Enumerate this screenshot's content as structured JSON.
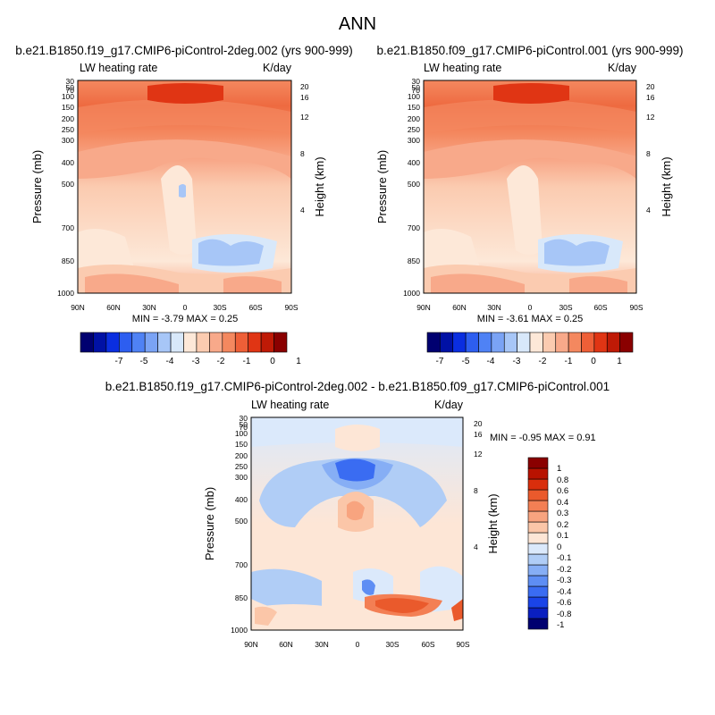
{
  "figure": {
    "title": "ANN"
  },
  "chart_data": [
    {
      "type": "heatmap",
      "title": "b.e21.B1850.f19_g17.CMIP6-piControl-2deg.002 (yrs 900-999)",
      "left_subtitle": "LW heating rate",
      "right_subtitle": "K/day",
      "ylabel": "Pressure (mb)",
      "ylabel_right": "Height (km)",
      "xlabel": "",
      "x_ticks": [
        "90N",
        "60N",
        "30N",
        "0",
        "30S",
        "60S",
        "90S"
      ],
      "y_ticks": [
        "30",
        "50",
        "70",
        "100",
        "150",
        "200",
        "250",
        "300",
        "400",
        "500",
        "700",
        "850",
        "1000"
      ],
      "y_ticks_right": [
        "20",
        "16",
        "12",
        "8",
        "4"
      ],
      "stats": "MIN = -3.79 MAX = 0.25"
    },
    {
      "type": "heatmap",
      "title": "b.e21.B1850.f09_g17.CMIP6-piControl.001 (yrs 900-999)",
      "left_subtitle": "LW heating rate",
      "right_subtitle": "K/day",
      "ylabel": "Pressure (mb)",
      "ylabel_right": "Height (km)",
      "xlabel": "",
      "x_ticks": [
        "90N",
        "60N",
        "30N",
        "0",
        "30S",
        "60S",
        "90S"
      ],
      "y_ticks": [
        "30",
        "50",
        "70",
        "100",
        "150",
        "200",
        "250",
        "300",
        "400",
        "500",
        "700",
        "850",
        "1000"
      ],
      "y_ticks_right": [
        "20",
        "16",
        "12",
        "8",
        "4"
      ],
      "stats": "MIN = -3.61 MAX = 0.25"
    },
    {
      "type": "heatmap",
      "title": "b.e21.B1850.f19_g17.CMIP6-piControl-2deg.002 - b.e21.B1850.f09_g17.CMIP6-piControl.001",
      "left_subtitle": "LW heating rate",
      "right_subtitle": "K/day",
      "ylabel": "Pressure (mb)",
      "ylabel_right": "Height (km)",
      "xlabel": "",
      "x_ticks": [
        "90N",
        "60N",
        "30N",
        "0",
        "30S",
        "60S",
        "90S"
      ],
      "y_ticks": [
        "30",
        "50",
        "70",
        "100",
        "150",
        "200",
        "250",
        "300",
        "400",
        "500",
        "700",
        "850",
        "1000"
      ],
      "y_ticks_right": [
        "20",
        "16",
        "12",
        "8",
        "4"
      ],
      "stats": "MIN = -0.95 MAX = 0.91"
    }
  ],
  "colorbars": {
    "top": {
      "labels": [
        "-7",
        "-5",
        "-4",
        "-3",
        "-2",
        "-1",
        "0",
        "1"
      ],
      "colors": [
        "#000070",
        "#0011a5",
        "#0a2ee0",
        "#2d5ef0",
        "#4f82f5",
        "#7aa3f5",
        "#a7c6f7",
        "#d8e8fa",
        "#fde8d8",
        "#fbcbb0",
        "#f8a98a",
        "#f4885f",
        "#ee5f37",
        "#e03514",
        "#bf1a06",
        "#8a0000"
      ]
    },
    "bottom": {
      "labels": [
        "-1",
        "-0.8",
        "-0.6",
        "-0.4",
        "-0.3",
        "-0.2",
        "-0.1",
        "0",
        "0.1",
        "0.2",
        "0.3",
        "0.4",
        "0.6",
        "0.8",
        "1"
      ],
      "colors": [
        "#000070",
        "#0a1fc0",
        "#1a44e8",
        "#3a6cf2",
        "#5e8ef4",
        "#86aef5",
        "#b0cdf6",
        "#dbe9fb",
        "#fde6d6",
        "#fbc6a8",
        "#f8a47f",
        "#f37f54",
        "#ea5a2c",
        "#d92e0c",
        "#b81200",
        "#8a0000"
      ]
    }
  }
}
